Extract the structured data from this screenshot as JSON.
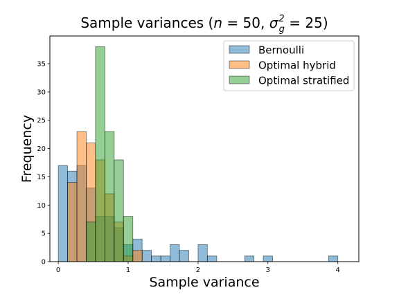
{
  "chart_data": {
    "type": "histogram",
    "title_main": "Sample variances (",
    "title_n": "n",
    "title_eq50": " = 50, ",
    "title_sigma": "σ",
    "title_sub": "g",
    "title_sup": "2",
    "title_eq25": " = 25)",
    "xlabel": "Sample variance",
    "ylabel": "Frequency",
    "xlim": [
      -0.12,
      4.3
    ],
    "ylim": [
      0,
      39.9
    ],
    "xticks": [
      0,
      1,
      2,
      3,
      4
    ],
    "yticks": [
      0,
      5,
      10,
      15,
      20,
      25,
      30,
      35
    ],
    "legend_position": "upper right",
    "series": [
      {
        "name": "Bernoulli",
        "color": "#1f77b4",
        "bins": [
          {
            "x0": 0.0,
            "x1": 0.133,
            "count": 17
          },
          {
            "x0": 0.133,
            "x1": 0.267,
            "count": 16
          },
          {
            "x0": 0.267,
            "x1": 0.4,
            "count": 17
          },
          {
            "x0": 0.4,
            "x1": 0.533,
            "count": 13
          },
          {
            "x0": 0.533,
            "x1": 0.667,
            "count": 8
          },
          {
            "x0": 0.667,
            "x1": 0.8,
            "count": 8
          },
          {
            "x0": 0.8,
            "x1": 0.933,
            "count": 6
          },
          {
            "x0": 0.933,
            "x1": 1.067,
            "count": 3
          },
          {
            "x0": 1.067,
            "x1": 1.2,
            "count": 4
          },
          {
            "x0": 1.2,
            "x1": 1.333,
            "count": 2
          },
          {
            "x0": 1.333,
            "x1": 1.467,
            "count": 1
          },
          {
            "x0": 1.467,
            "x1": 1.6,
            "count": 1
          },
          {
            "x0": 1.6,
            "x1": 1.733,
            "count": 3
          },
          {
            "x0": 1.733,
            "x1": 1.867,
            "count": 2
          },
          {
            "x0": 2.0,
            "x1": 2.133,
            "count": 3
          },
          {
            "x0": 2.133,
            "x1": 2.267,
            "count": 1
          },
          {
            "x0": 2.667,
            "x1": 2.8,
            "count": 1
          },
          {
            "x0": 2.933,
            "x1": 3.067,
            "count": 1
          },
          {
            "x0": 3.867,
            "x1": 4.0,
            "count": 1
          }
        ]
      },
      {
        "name": "Optimal hybrid",
        "color": "#ff7f0e",
        "bins": [
          {
            "x0": 0.133,
            "x1": 0.267,
            "count": 14
          },
          {
            "x0": 0.267,
            "x1": 0.4,
            "count": 23
          },
          {
            "x0": 0.4,
            "x1": 0.533,
            "count": 21
          },
          {
            "x0": 0.533,
            "x1": 0.667,
            "count": 18
          },
          {
            "x0": 0.667,
            "x1": 0.8,
            "count": 12
          },
          {
            "x0": 0.8,
            "x1": 0.933,
            "count": 7
          },
          {
            "x0": 0.933,
            "x1": 1.067,
            "count": 1
          },
          {
            "x0": 1.067,
            "x1": 1.2,
            "count": 2
          }
        ]
      },
      {
        "name": "Optimal stratified",
        "color": "#2ca02c",
        "bins": [
          {
            "x0": 0.4,
            "x1": 0.533,
            "count": 7
          },
          {
            "x0": 0.533,
            "x1": 0.667,
            "count": 38
          },
          {
            "x0": 0.667,
            "x1": 0.8,
            "count": 23
          },
          {
            "x0": 0.8,
            "x1": 0.933,
            "count": 18
          },
          {
            "x0": 0.933,
            "x1": 1.067,
            "count": 8
          }
        ]
      }
    ]
  }
}
